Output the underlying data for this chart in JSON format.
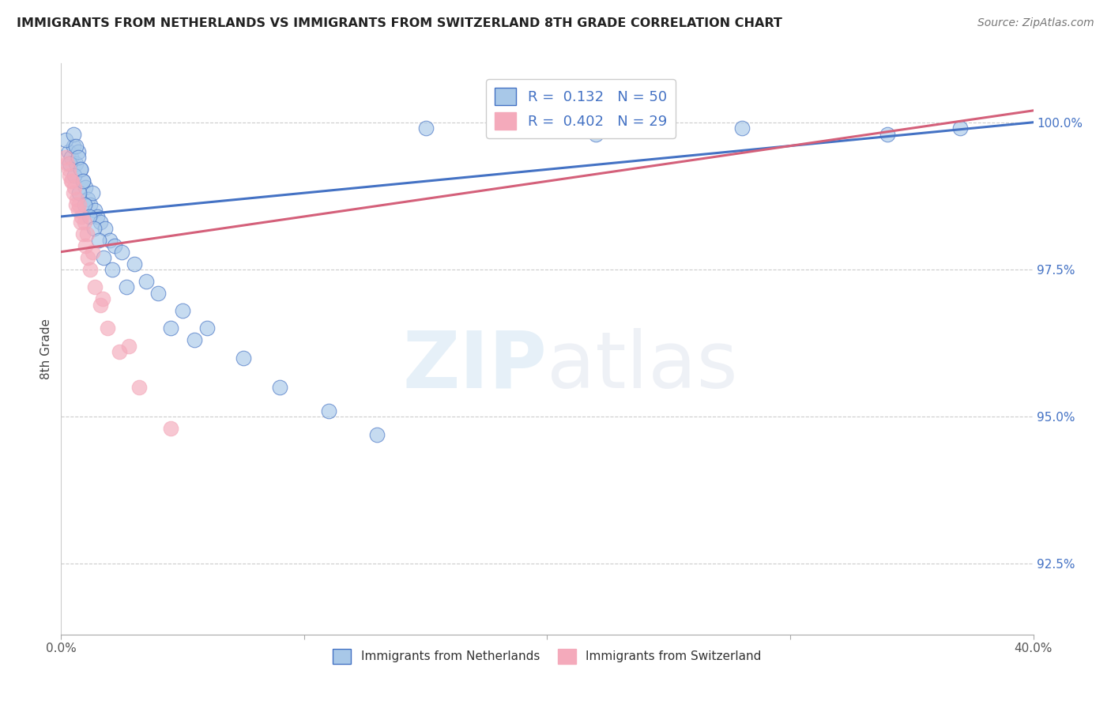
{
  "title": "IMMIGRANTS FROM NETHERLANDS VS IMMIGRANTS FROM SWITZERLAND 8TH GRADE CORRELATION CHART",
  "source": "Source: ZipAtlas.com",
  "ylabel_label": "8th Grade",
  "legend_label1": "Immigrants from Netherlands",
  "legend_label2": "Immigrants from Switzerland",
  "R_netherlands": 0.132,
  "N_netherlands": 50,
  "R_switzerland": 0.402,
  "N_switzerland": 29,
  "color_netherlands_fill": "#A8C8E8",
  "color_switzerland_fill": "#F4AABB",
  "color_netherlands_line": "#4472C4",
  "color_switzerland_line": "#D4607A",
  "watermark_zip": "ZIP",
  "watermark_atlas": "atlas",
  "xmin": 0.0,
  "xmax": 40.0,
  "ymin": 91.3,
  "ymax": 101.0,
  "yticks": [
    92.5,
    95.0,
    97.5,
    100.0
  ],
  "xticks": [
    0.0,
    10.0,
    20.0,
    30.0,
    40.0
  ],
  "nl_line_x0": 0.0,
  "nl_line_y0": 98.4,
  "nl_line_x1": 40.0,
  "nl_line_y1": 100.0,
  "ch_line_x0": 0.0,
  "ch_line_y0": 97.8,
  "ch_line_x1": 40.0,
  "ch_line_y1": 100.2,
  "netherlands_x": [
    0.3,
    0.4,
    0.5,
    0.6,
    0.7,
    0.8,
    0.9,
    1.0,
    1.1,
    1.2,
    1.3,
    1.4,
    1.5,
    1.6,
    1.8,
    2.0,
    2.2,
    2.5,
    3.0,
    3.5,
    4.0,
    5.0,
    6.0,
    7.5,
    0.2,
    0.35,
    0.55,
    0.75,
    0.95,
    1.15,
    1.35,
    1.55,
    1.75,
    2.1,
    2.7,
    0.5,
    0.6,
    0.7,
    0.8,
    0.9,
    15.0,
    22.0,
    28.0,
    34.0,
    37.0,
    4.5,
    5.5,
    9.0,
    11.0,
    13.0
  ],
  "netherlands_y": [
    99.5,
    99.4,
    99.6,
    99.3,
    99.5,
    99.2,
    99.0,
    98.9,
    98.7,
    98.6,
    98.8,
    98.5,
    98.4,
    98.3,
    98.2,
    98.0,
    97.9,
    97.8,
    97.6,
    97.3,
    97.1,
    96.8,
    96.5,
    96.0,
    99.7,
    99.3,
    99.1,
    98.8,
    98.6,
    98.4,
    98.2,
    98.0,
    97.7,
    97.5,
    97.2,
    99.8,
    99.6,
    99.4,
    99.2,
    99.0,
    99.9,
    99.8,
    99.9,
    99.8,
    99.9,
    96.5,
    96.3,
    95.5,
    95.1,
    94.7
  ],
  "switzerland_x": [
    0.2,
    0.3,
    0.4,
    0.5,
    0.6,
    0.7,
    0.8,
    0.9,
    1.0,
    1.1,
    1.2,
    1.4,
    1.6,
    1.9,
    2.4,
    0.25,
    0.45,
    0.65,
    0.85,
    1.05,
    1.3,
    1.7,
    2.8,
    0.35,
    0.55,
    0.75,
    0.95,
    4.5,
    3.2
  ],
  "switzerland_y": [
    99.4,
    99.2,
    99.0,
    98.8,
    98.6,
    98.5,
    98.3,
    98.1,
    97.9,
    97.7,
    97.5,
    97.2,
    96.9,
    96.5,
    96.1,
    99.3,
    99.0,
    98.7,
    98.4,
    98.1,
    97.8,
    97.0,
    96.2,
    99.1,
    98.9,
    98.6,
    98.3,
    94.8,
    95.5
  ]
}
